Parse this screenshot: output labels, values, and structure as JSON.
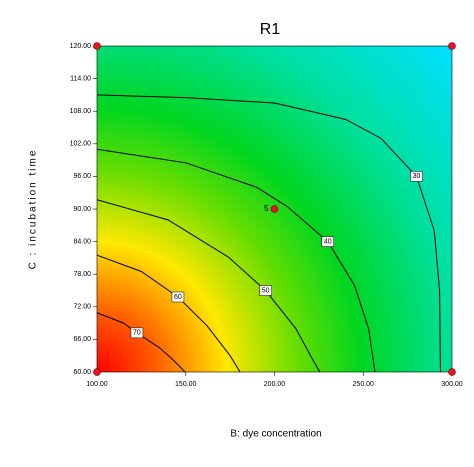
{
  "chart_data": {
    "type": "contour",
    "title": "R1",
    "x_label": "B: dye concentration",
    "y_label": "C : incubation time",
    "xlim": [
      100,
      300
    ],
    "xticks": [
      {
        "value": 100,
        "label": "100.00"
      },
      {
        "value": 150,
        "label": "150.00"
      },
      {
        "value": 200,
        "label": "200.00"
      },
      {
        "value": 250,
        "label": "250.00"
      },
      {
        "value": 300,
        "label": "300.00"
      }
    ],
    "ylim": [
      60,
      120
    ],
    "yticks": [
      {
        "value": 60,
        "label": "60.00"
      },
      {
        "value": 66,
        "label": "66.00"
      },
      {
        "value": 72,
        "label": "72.00"
      },
      {
        "value": 78,
        "label": "78.00"
      },
      {
        "value": 84,
        "label": "84.00"
      },
      {
        "value": 90,
        "label": "90.00"
      },
      {
        "value": 96,
        "label": "96.00"
      },
      {
        "value": 102,
        "label": "102.00"
      },
      {
        "value": 108,
        "label": "108.00"
      },
      {
        "value": 114,
        "label": "114.00"
      },
      {
        "value": 120,
        "label": "120.00"
      }
    ],
    "contours": [
      {
        "level": 30,
        "x": [
          100,
          150,
          200,
          240,
          260,
          280,
          290,
          293,
          293.5
        ],
        "y": [
          111,
          110.5,
          109.5,
          106.5,
          103,
          96,
          86,
          75,
          60
        ]
      },
      {
        "level": 40,
        "x": [
          100,
          150,
          190,
          207,
          230,
          245,
          253,
          256.6
        ],
        "y": [
          101,
          98.5,
          94,
          90.5,
          84,
          76,
          68,
          60
        ]
      },
      {
        "level": 50,
        "x": [
          100,
          140,
          173.8,
          195,
          212,
          222,
          225.6
        ],
        "y": [
          91.7,
          88,
          81.2,
          75,
          68,
          62,
          60
        ]
      },
      {
        "level": 60,
        "x": [
          100,
          125,
          145.6,
          162,
          175,
          180.6
        ],
        "y": [
          81.5,
          78.5,
          73.8,
          68.5,
          63,
          60
        ]
      },
      {
        "level": 70,
        "x": [
          100,
          115,
          122.5,
          135,
          142,
          149.6
        ],
        "y": [
          70.9,
          69,
          67.2,
          64.5,
          62.5,
          60
        ]
      }
    ],
    "contour_color": "#000000",
    "design_points": {
      "x": [
        100,
        100,
        300,
        300,
        200
      ],
      "y": [
        60,
        120,
        60,
        120,
        90
      ],
      "color": "#e8141c"
    },
    "center_replicates": 5
  }
}
